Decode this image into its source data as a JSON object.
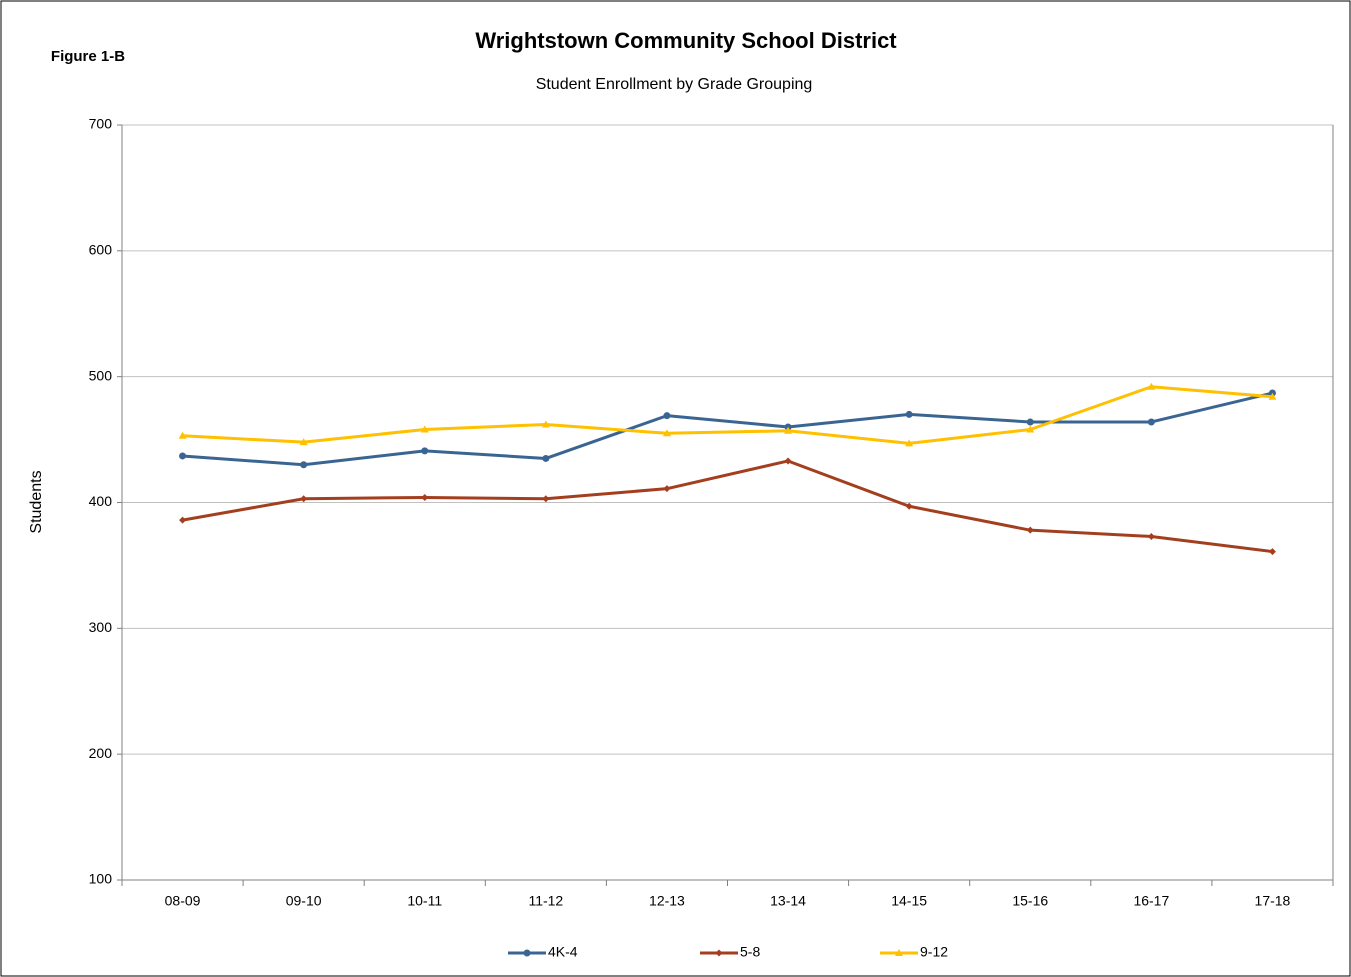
{
  "chart_data": {
    "type": "line",
    "title": "Wrightstown Community School District",
    "subtitle": "Student Enrollment by Grade Grouping",
    "figure_label": "Figure 1-B",
    "y_label": "Students",
    "categories": [
      "08-09",
      "09-10",
      "10-11",
      "11-12",
      "12-13",
      "13-14",
      "14-15",
      "15-16",
      "16-17",
      "17-18"
    ],
    "series": [
      {
        "name": "4K-4",
        "color": "#3a6592",
        "marker": "circle",
        "values": [
          437,
          430,
          441,
          435,
          469,
          460,
          470,
          464,
          464,
          487
        ]
      },
      {
        "name": "5-8",
        "color": "#a33f1f",
        "marker": "diamond",
        "values": [
          386,
          403,
          404,
          403,
          411,
          433,
          397,
          378,
          373,
          361
        ]
      },
      {
        "name": "9-12",
        "color": "#ffc000",
        "marker": "triangle",
        "values": [
          453,
          448,
          458,
          462,
          455,
          457,
          447,
          458,
          492,
          484
        ]
      }
    ],
    "ylim": [
      100,
      700
    ],
    "yticks": [
      100,
      200,
      300,
      400,
      500,
      600,
      700
    ],
    "grid": true,
    "legend": "bottom"
  }
}
